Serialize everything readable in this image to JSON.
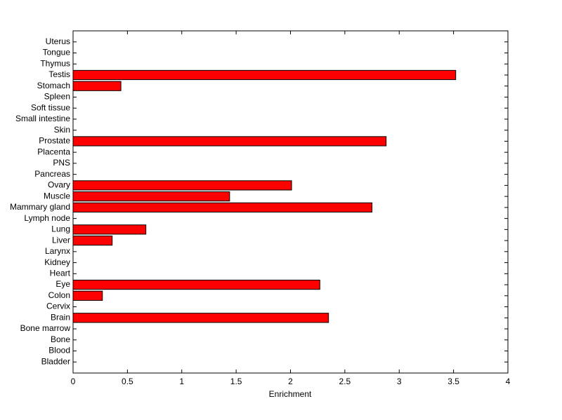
{
  "chart_data": {
    "type": "bar",
    "orientation": "horizontal",
    "x_label": "Enrichment",
    "categories": [
      "Bladder",
      "Blood",
      "Bone",
      "Bone marrow",
      "Brain",
      "Cervix",
      "Colon",
      "Eye",
      "Heart",
      "Kidney",
      "Larynx",
      "Liver",
      "Lung",
      "Lymph node",
      "Mammary gland",
      "Muscle",
      "Ovary",
      "Pancreas",
      "PNS",
      "Placenta",
      "Prostate",
      "Skin",
      "Small intestine",
      "Soft tissue",
      "Spleen",
      "Stomach",
      "Testis",
      "Thymus",
      "Tongue",
      "Uterus"
    ],
    "values": [
      0,
      0,
      0,
      0,
      2.35,
      0,
      0.27,
      2.27,
      0,
      0,
      0,
      0.36,
      0.67,
      0,
      2.75,
      1.44,
      2.01,
      0,
      0,
      0,
      2.88,
      0,
      0,
      0,
      0,
      0.44,
      3.52,
      0,
      0,
      0
    ],
    "color": "#ff0000",
    "xlim": [
      0,
      4
    ],
    "xticks": [
      0,
      0.5,
      1,
      1.5,
      2,
      2.5,
      3,
      3.5,
      4
    ],
    "grid": false
  }
}
